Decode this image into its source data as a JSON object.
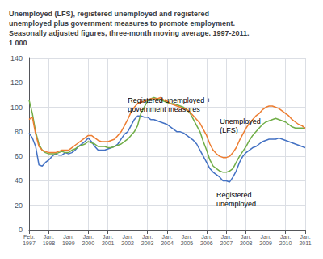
{
  "chart_data": {
    "type": "line",
    "title": "Unemployed (LFS), registered unemployed and registered\nunemployed plus government measures to promote employment.\nSeasonally adjusted figures, three-month moving average. 1997-2011.\n1 000",
    "categories": [
      "Feb.\n1997",
      null,
      null,
      null,
      null,
      null,
      "Jan.\n1998",
      null,
      null,
      null,
      null,
      null,
      "Jan.\n1999",
      null,
      null,
      null,
      null,
      null,
      "Jan.\n2000",
      null,
      null,
      null,
      null,
      null,
      "Jan.\n2001",
      null,
      null,
      null,
      null,
      null,
      "Jan.\n2002",
      null,
      null,
      null,
      null,
      null,
      "Jan.\n2003",
      null,
      null,
      null,
      null,
      null,
      "Jan.\n2004",
      null,
      null,
      null,
      null,
      null,
      "Jan.\n2005",
      null,
      null,
      null,
      null,
      null,
      "Jan.\n2006",
      null,
      null,
      null,
      null,
      null,
      "Jan.\n2007",
      null,
      null,
      null,
      null,
      null,
      "Jan.\n2008",
      null,
      null,
      null,
      null,
      null,
      "Jan.\n2009",
      null,
      null,
      null,
      null,
      null,
      "Jan.\n2010",
      null,
      null,
      null,
      null,
      null,
      "Jan.\n2011"
    ],
    "series": [
      {
        "color": "#4472C4",
        "values": [
          79,
          75,
          68,
          53,
          52,
          55,
          57,
          60,
          62,
          61,
          61,
          63,
          62,
          63,
          65,
          68,
          70,
          72,
          75,
          72,
          68,
          65,
          65,
          65,
          66,
          67,
          68,
          70,
          74,
          78,
          80,
          85,
          90,
          93,
          93,
          92,
          92,
          90,
          90,
          89,
          88,
          87,
          86,
          84,
          82,
          80,
          80,
          79,
          77,
          75,
          73,
          70,
          65,
          60,
          55,
          50,
          47,
          45,
          43,
          40,
          40,
          39,
          43,
          48,
          55,
          60,
          63,
          65,
          67,
          68,
          70,
          72,
          73,
          74,
          74,
          74,
          75,
          74,
          73,
          72,
          71,
          70,
          69,
          68,
          67
        ]
      },
      {
        "color": "#70AD47",
        "values": [
          106,
          95,
          80,
          70,
          65,
          63,
          62,
          62,
          62,
          63,
          64,
          63,
          63,
          65,
          66,
          68,
          69,
          70,
          72,
          71,
          70,
          68,
          68,
          68,
          67,
          67,
          68,
          69,
          70,
          72,
          74,
          77,
          80,
          85,
          95,
          100,
          105,
          107,
          108,
          107,
          106,
          105,
          104,
          103,
          103,
          102,
          101,
          100,
          98,
          95,
          90,
          85,
          80,
          72,
          65,
          57,
          52,
          50,
          48,
          47,
          47,
          48,
          50,
          55,
          60,
          64,
          68,
          73,
          77,
          80,
          83,
          86,
          88,
          89,
          90,
          91,
          90,
          89,
          88,
          86,
          84,
          83,
          83,
          83,
          83
        ]
      },
      {
        "color": "#ED7D31",
        "values": [
          90,
          92,
          78,
          68,
          65,
          64,
          63,
          63,
          63,
          64,
          65,
          65,
          65,
          67,
          69,
          71,
          73,
          75,
          77,
          77,
          75,
          73,
          72,
          72,
          72,
          73,
          74,
          77,
          80,
          85,
          90,
          96,
          100,
          103,
          104,
          105,
          106,
          107,
          107,
          107,
          108,
          106,
          105,
          103,
          102,
          101,
          100,
          99,
          98,
          96,
          93,
          90,
          87,
          82,
          77,
          70,
          65,
          62,
          60,
          59,
          59,
          60,
          63,
          67,
          73,
          78,
          83,
          87,
          90,
          93,
          95,
          98,
          100,
          101,
          101,
          100,
          99,
          97,
          95,
          93,
          90,
          88,
          86,
          85,
          83
        ]
      }
    ],
    "ylim": [
      0,
      140
    ],
    "yticks": [
      0,
      20,
      40,
      60,
      80,
      100,
      120,
      140
    ],
    "grid": true,
    "annotations": [
      {
        "text": "Registered unemployed +\ngovernment measures",
        "x": 30,
        "y": 95
      },
      {
        "text": "Unemployed\n(LFS)",
        "x": 58,
        "y": 85
      },
      {
        "text": "Registered\nunemployed",
        "x": 57,
        "y": 32
      }
    ]
  }
}
